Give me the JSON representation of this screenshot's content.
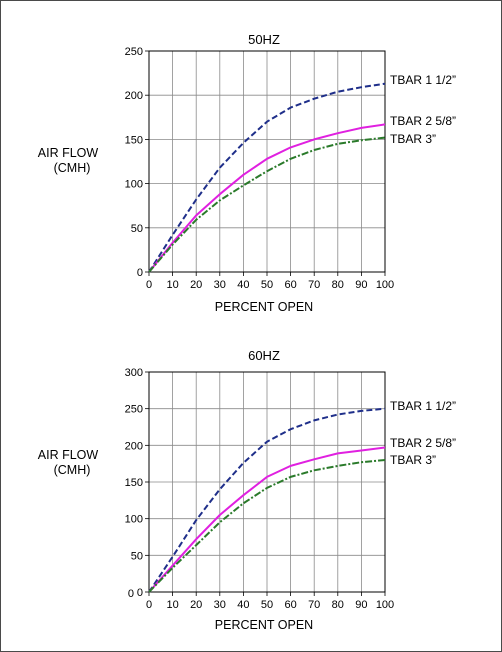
{
  "chart_data": [
    {
      "type": "line",
      "title": "50HZ",
      "xlabel": "PERCENT OPEN",
      "ylabel_lines": [
        "AIR FLOW",
        "(CMH)"
      ],
      "x": [
        0,
        10,
        20,
        30,
        40,
        50,
        60,
        70,
        80,
        90,
        100
      ],
      "xlim": [
        0,
        100
      ],
      "ylim": [
        0,
        250
      ],
      "xticks": [
        "0",
        "10",
        "20",
        "30",
        "40",
        "50",
        "60",
        "70",
        "80",
        "90",
        "100"
      ],
      "yticks": [
        "0",
        "50",
        "100",
        "150",
        "200",
        "250"
      ],
      "grid": true,
      "series": [
        {
          "name": "TBAR 1 1/2”",
          "color": "#1f2f8a",
          "dash": "dash",
          "values": [
            0,
            42,
            82,
            118,
            146,
            170,
            186,
            196,
            204,
            209,
            213
          ]
        },
        {
          "name": "TBAR 2 5/8”",
          "color": "#e020e0",
          "dash": "solid",
          "values": [
            0,
            33,
            64,
            88,
            110,
            128,
            141,
            150,
            157,
            163,
            167
          ]
        },
        {
          "name": "TBAR 3”",
          "color": "#2a7a2a",
          "dash": "dashdot",
          "values": [
            0,
            31,
            59,
            81,
            98,
            114,
            128,
            138,
            145,
            149,
            152
          ]
        }
      ]
    },
    {
      "type": "line",
      "title": "60HZ",
      "xlabel": "PERCENT OPEN",
      "ylabel_lines": [
        "AIR FLOW",
        "(CMH)"
      ],
      "x": [
        0,
        10,
        20,
        30,
        40,
        50,
        60,
        70,
        80,
        90,
        100
      ],
      "xlim": [
        0,
        100
      ],
      "ylim": [
        0,
        300
      ],
      "xticks": [
        "0",
        "10",
        "20",
        "30",
        "40",
        "50",
        "60",
        "70",
        "80",
        "90",
        "100"
      ],
      "yticks": [
        "0",
        "50",
        "100",
        "150",
        "200",
        "250",
        "300"
      ],
      "ytick_extra": "0",
      "grid": true,
      "series": [
        {
          "name": "TBAR 1 1/2”",
          "color": "#1f2f8a",
          "dash": "dash",
          "values": [
            0,
            48,
            98,
            140,
            176,
            205,
            222,
            234,
            242,
            247,
            250
          ]
        },
        {
          "name": "TBAR 2 5/8”",
          "color": "#e020e0",
          "dash": "solid",
          "values": [
            0,
            36,
            72,
            105,
            132,
            157,
            172,
            181,
            189,
            193,
            197
          ]
        },
        {
          "name": "TBAR 3”",
          "color": "#2a7a2a",
          "dash": "dashdot",
          "values": [
            0,
            33,
            64,
            95,
            121,
            142,
            157,
            166,
            172,
            177,
            180
          ]
        }
      ]
    }
  ]
}
